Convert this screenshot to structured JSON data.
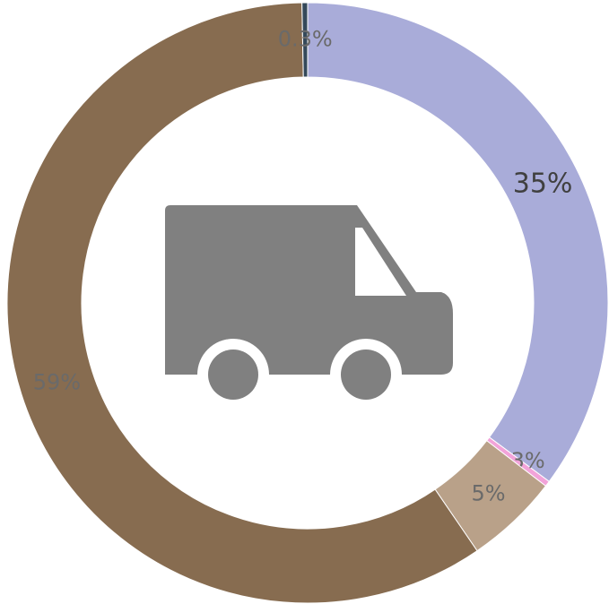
{
  "chart_data": {
    "type": "donut",
    "categories": [
      null,
      null,
      null,
      null,
      null
    ],
    "values": [
      35,
      0.3,
      5,
      59,
      0.3
    ],
    "value_labels": [
      "35%",
      "0.3%",
      "5%",
      "59%",
      "0.3%"
    ],
    "colors": [
      "#a9acd9",
      "#f2a3d9",
      "#b9a189",
      "#876c50",
      "#34495a"
    ]
  }
}
